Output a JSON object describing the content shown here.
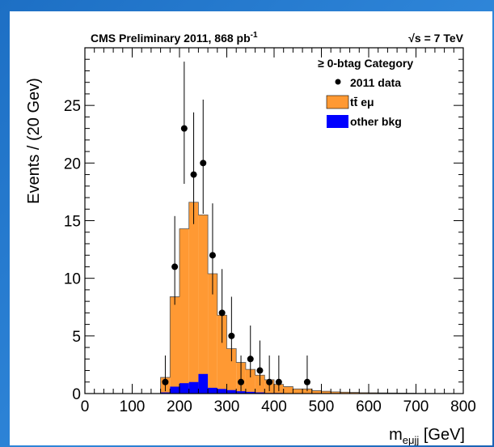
{
  "chart_data": {
    "type": "bar",
    "title": "CMS Preliminary 2011, 868 pb",
    "title_superscript": "-1",
    "energy_label": "√s = 7 TeV",
    "xlabel": "m",
    "xlabel_subscript": "eμjj",
    "xlabel_unit": " [GeV]",
    "ylabel": "Events / (20 Gev)",
    "xlim": [
      0,
      800
    ],
    "ylim": [
      0,
      30
    ],
    "bin_width": 20,
    "x_ticks": [
      0,
      100,
      200,
      300,
      400,
      500,
      600,
      700,
      800
    ],
    "y_ticks": [
      0,
      5,
      10,
      15,
      20,
      25
    ],
    "legend_position": "top-right",
    "legend": {
      "header": "≥ 0-btag Category",
      "entries": [
        "2011 data",
        "tt̄ eμ",
        "other bkg"
      ]
    },
    "colors": {
      "ttbar": "#ff9933",
      "other": "#0000ff",
      "data": "#000000"
    },
    "series": [
      {
        "name": "tt̄ eμ",
        "bins_start": [
          160,
          180,
          200,
          220,
          240,
          260,
          280,
          300,
          320,
          340,
          360,
          380,
          400,
          420,
          440,
          460,
          480,
          500,
          520,
          540,
          560,
          580,
          600,
          620,
          640,
          660,
          680,
          700,
          720,
          740,
          760,
          780
        ],
        "values": [
          1.4,
          8.4,
          14.3,
          16.6,
          15.5,
          10.4,
          6.8,
          3.9,
          2.7,
          2.1,
          1.6,
          1.2,
          0.8,
          0.6,
          0.4,
          0.4,
          0.25,
          0.2,
          0.15,
          0.12,
          0.1,
          0.08,
          0.07,
          0.06,
          0.05,
          0.04,
          0.03,
          0.02,
          0.02,
          0.01,
          0.01,
          0.01
        ]
      },
      {
        "name": "other bkg",
        "bins_start": [
          160,
          180,
          200,
          220,
          240,
          260,
          280,
          300,
          320,
          340,
          360,
          380,
          400
        ],
        "values": [
          0.1,
          0.6,
          0.9,
          1.0,
          1.7,
          0.5,
          0.4,
          0.3,
          0.2,
          0.15,
          0.1,
          0.05,
          0.05
        ]
      }
    ],
    "data_points": {
      "name": "2011 data",
      "x": [
        170,
        190,
        210,
        230,
        250,
        270,
        290,
        310,
        330,
        350,
        370,
        390,
        410,
        470
      ],
      "y": [
        1,
        11,
        23,
        19,
        20,
        12,
        7,
        5,
        1,
        3,
        2,
        1,
        1,
        1
      ],
      "yerr_low": [
        0.8,
        3.3,
        4.8,
        4.3,
        4.4,
        3.4,
        2.6,
        2.2,
        0.8,
        1.6,
        1.3,
        0.8,
        0.8,
        0.8
      ],
      "yerr_high": [
        2.3,
        4.4,
        5.8,
        5.4,
        5.5,
        4.5,
        3.8,
        3.4,
        2.3,
        2.9,
        2.6,
        2.3,
        2.3,
        2.3
      ]
    }
  }
}
